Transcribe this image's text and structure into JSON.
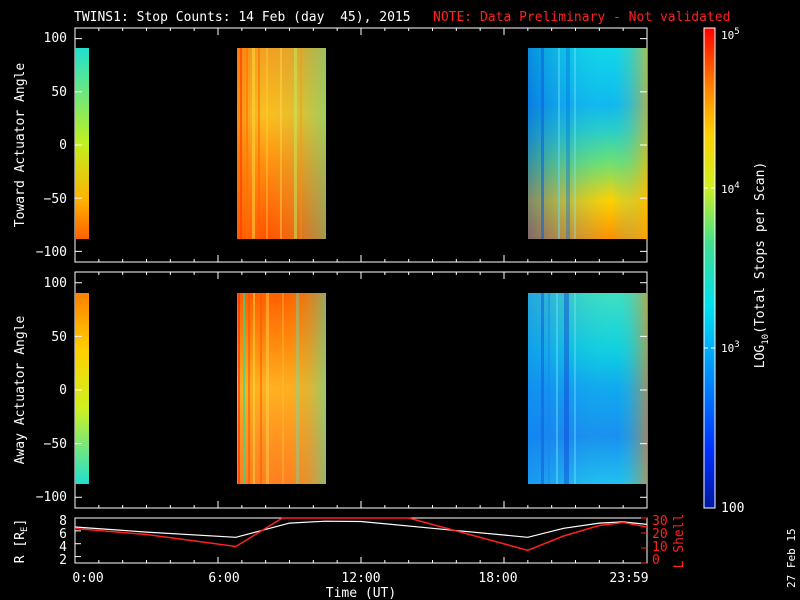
{
  "header": {
    "title": "TWINS1: Stop Counts: 14 Feb (day  45), 2015",
    "note": "NOTE: Data Preliminary - Not validated"
  },
  "colors": {
    "background": "#000000",
    "foreground": "#ffffff",
    "note": "#ff2020",
    "r_line": "#ffffff",
    "lshell_line": "#ff2020"
  },
  "chart_data": [
    {
      "type": "heatmap",
      "title": "TWINS1: Stop Counts: 14 Feb (day  45), 2015",
      "ylabel": "Toward Actuator Angle",
      "ylim": [
        -110,
        110
      ],
      "xlim_hours": [
        0,
        24
      ],
      "yticks": [
        "100",
        "50",
        "0",
        "−50",
        "−100"
      ],
      "data_blocks": [
        {
          "t_start": 0.0,
          "t_end": 0.3,
          "angle_range": [
            -90,
            90
          ],
          "level": "moderate, higher near -90"
        },
        {
          "t_start": 6.75,
          "t_end": 10.4,
          "angle_range": [
            -90,
            90
          ],
          "level": "high (~1e4-5e4)"
        },
        {
          "t_start": 19.0,
          "t_end": 24.0,
          "angle_range": [
            -90,
            90
          ],
          "level": "low-moderate (~1e3-1e4)"
        }
      ]
    },
    {
      "type": "heatmap",
      "ylabel": "Away Actuator Angle",
      "ylim": [
        -110,
        110
      ],
      "xlim_hours": [
        0,
        24
      ],
      "yticks": [
        "100",
        "50",
        "0",
        "−50",
        "−100"
      ],
      "data_blocks": [
        {
          "t_start": 0.0,
          "t_end": 0.3,
          "angle_range": [
            -90,
            90
          ],
          "level": "moderate"
        },
        {
          "t_start": 6.75,
          "t_end": 10.4,
          "angle_range": [
            -90,
            90
          ],
          "level": "high (~1e4-5e4)"
        },
        {
          "t_start": 19.0,
          "t_end": 24.0,
          "angle_range": [
            -90,
            90
          ],
          "level": "low-moderate (~1e3-1e4)"
        }
      ]
    },
    {
      "type": "line",
      "ylabel": "R [R",
      "ylabel_sub": "E",
      "ylabel_close": "]",
      "y2label": "L Shell",
      "ylim": [
        1,
        8
      ],
      "y2lim": [
        0,
        30
      ],
      "yticks": [
        "8",
        "6",
        "4",
        "2"
      ],
      "y2ticks": [
        "30",
        "20",
        "10",
        "0"
      ],
      "xlabel": "Time (UT)",
      "xticks": [
        "0:00",
        "6:00",
        "12:00",
        "18:00",
        "23:59"
      ],
      "series": [
        {
          "axis": "left",
          "x": [
            0,
            3,
            6.75,
            9,
            10.5,
            12,
            15,
            19,
            20.5,
            22,
            23,
            24
          ],
          "y": [
            6.6,
            5.8,
            5.0,
            7.2,
            7.5,
            7.45,
            6.4,
            5.0,
            6.4,
            7.2,
            7.4,
            7.0
          ]
        },
        {
          "axis": "right",
          "x": [
            0,
            3,
            6.75,
            8.7,
            14,
            19,
            20.5,
            22,
            23,
            24
          ],
          "y": [
            23,
            19,
            11,
            30,
            30,
            8.5,
            18,
            25,
            27,
            24
          ]
        }
      ]
    }
  ],
  "colorbar": {
    "label_pre": "LOG",
    "label_sub": "10",
    "label_post": "(Total Stops per Scan)",
    "scale": "log",
    "range": [
      100,
      100000
    ],
    "ticks": [
      {
        "base": "10",
        "exp": "5",
        "value": 100000
      },
      {
        "base": "10",
        "exp": "4",
        "value": 10000
      },
      {
        "base": "10",
        "exp": "3",
        "value": 1000
      }
    ],
    "bottom_label": "100"
  },
  "footer": {
    "date": "27 Feb 15"
  }
}
